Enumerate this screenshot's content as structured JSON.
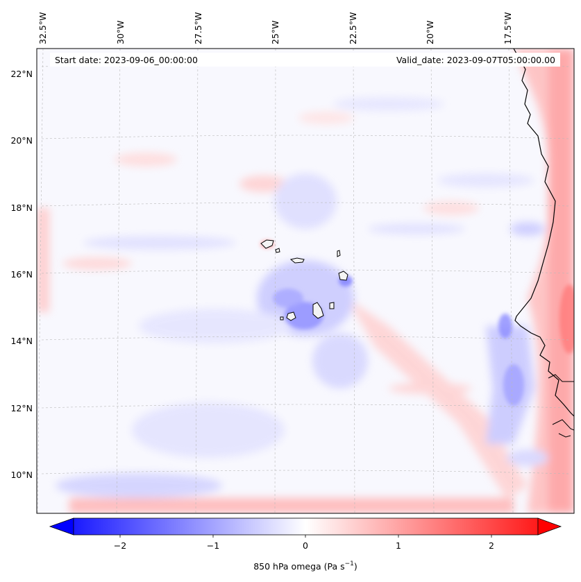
{
  "info": {
    "start_date": "Start date: 2023-09-06_00:00:00",
    "valid_date": "Valid_date: 2023-09-07T05:00:00.00"
  },
  "longitude_labels": [
    "32.5°W",
    "30°W",
    "27.5°W",
    "25°W",
    "22.5°W",
    "20°W",
    "17.5°W"
  ],
  "latitude_labels": [
    "22°N",
    "20°N",
    "18°N",
    "16°N",
    "14°N",
    "12°N",
    "10°N"
  ],
  "colorbar": {
    "ticks": [
      "−2",
      "−1",
      "0",
      "1",
      "2"
    ],
    "tick_values": [
      -2,
      -1,
      0,
      1,
      2
    ],
    "range": [
      -2.5,
      2.5
    ],
    "extend": "both",
    "cmap": "bwr",
    "colors": {
      "negative": "#0000ff",
      "zero": "#ffffff",
      "positive": "#ff0000"
    },
    "label_prefix": "850 hPa omega (Pa s",
    "label_exponent": "−1",
    "label_suffix": ")"
  },
  "map": {
    "projection": "lambert-conformal",
    "coastline_color": "#000000",
    "gridline_color": "#bbbbbb",
    "islands": [
      "Santo Antão",
      "São Vicente",
      "São Nicolau",
      "Sal",
      "Boa Vista",
      "Maio",
      "Santiago",
      "Fogo",
      "Brava"
    ]
  }
}
